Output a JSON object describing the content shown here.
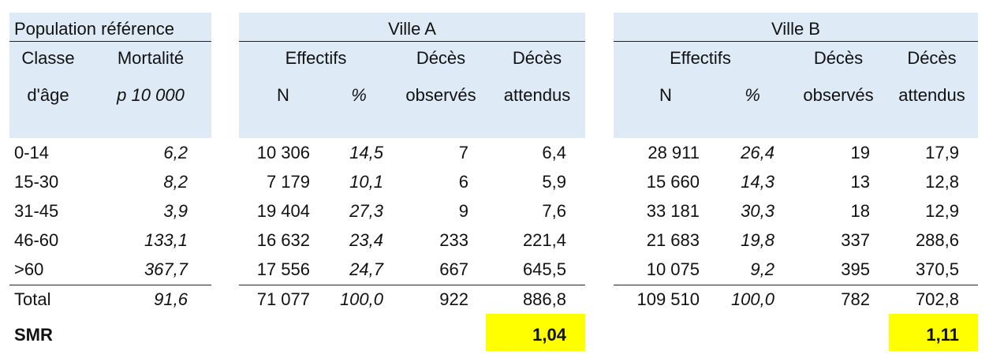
{
  "ref": {
    "title": "Population référence",
    "col1_h1": "Classe",
    "col1_h2": "d'âge",
    "col2_h1": "Mortalité",
    "col2_h2": "p 10 000",
    "rows": [
      {
        "age": "0-14",
        "mort": "6,2"
      },
      {
        "age": "15-30",
        "mort": "8,2"
      },
      {
        "age": "31-45",
        "mort": "3,9"
      },
      {
        "age": "46-60",
        "mort": "133,1"
      },
      {
        "age": ">60",
        "mort": "367,7"
      }
    ],
    "total_label": "Total",
    "total_mort": "91,6",
    "smr_label": "SMR"
  },
  "cities": [
    {
      "title": "Ville A",
      "h_effectifs": "Effectifs",
      "h_n": "N",
      "h_pct": "%",
      "h_obs1": "Décès",
      "h_obs2": "observés",
      "h_att1": "Décès",
      "h_att2": "attendus",
      "rows": [
        {
          "n": "10 306",
          "pct": "14,5",
          "obs": "7",
          "att": "6,4"
        },
        {
          "n": "7 179",
          "pct": "10,1",
          "obs": "6",
          "att": "5,9"
        },
        {
          "n": "19 404",
          "pct": "27,3",
          "obs": "9",
          "att": "7,6"
        },
        {
          "n": "16 632",
          "pct": "23,4",
          "obs": "233",
          "att": "221,4"
        },
        {
          "n": "17 556",
          "pct": "24,7",
          "obs": "667",
          "att": "645,5"
        }
      ],
      "total": {
        "n": "71 077",
        "pct": "100,0",
        "obs": "922",
        "att": "886,8"
      },
      "smr": "1,04"
    },
    {
      "title": "Ville B",
      "h_effectifs": "Effectifs",
      "h_n": "N",
      "h_pct": "%",
      "h_obs1": "Décès",
      "h_obs2": "observés",
      "h_att1": "Décès",
      "h_att2": "attendus",
      "rows": [
        {
          "n": "28 911",
          "pct": "26,4",
          "obs": "19",
          "att": "17,9"
        },
        {
          "n": "15 660",
          "pct": "14,3",
          "obs": "13",
          "att": "12,8"
        },
        {
          "n": "33 181",
          "pct": "30,3",
          "obs": "18",
          "att": "12,9"
        },
        {
          "n": "21 683",
          "pct": "19,8",
          "obs": "337",
          "att": "288,6"
        },
        {
          "n": "10 075",
          "pct": "9,2",
          "obs": "395",
          "att": "370,5"
        }
      ],
      "total": {
        "n": "109 510",
        "pct": "100,0",
        "obs": "782",
        "att": "702,8"
      },
      "smr": "1,11"
    }
  ],
  "colors": {
    "header_bg": "#deebf7",
    "highlight": "#ffff00"
  }
}
